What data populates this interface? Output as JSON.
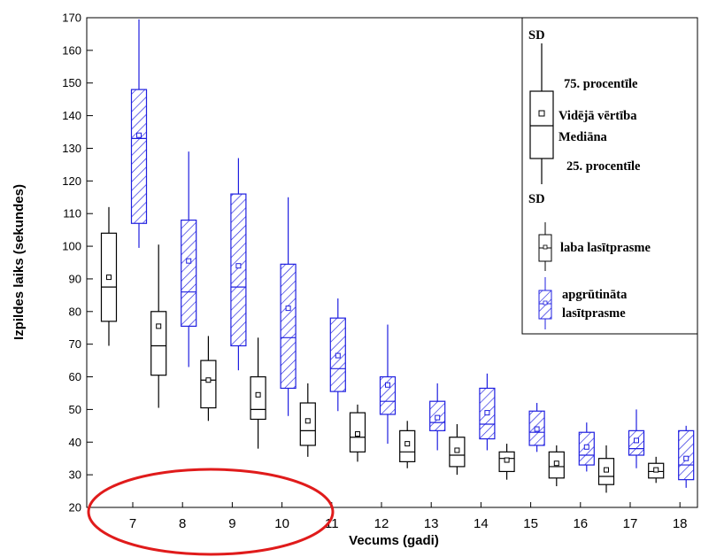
{
  "chart_data": {
    "type": "box",
    "xlabel": "Vecums (gadi)",
    "ylabel": "Izpildes laiks (sekundes)",
    "ylim": [
      20,
      170
    ],
    "yticks": [
      20,
      30,
      40,
      50,
      60,
      70,
      80,
      90,
      100,
      110,
      120,
      130,
      140,
      150,
      160,
      170
    ],
    "categories": [
      "7",
      "8",
      "9",
      "10",
      "11",
      "12",
      "13",
      "14",
      "15",
      "16",
      "17",
      "18"
    ],
    "grid": false,
    "legend_position": "top-right",
    "series": [
      {
        "name": "laba lasītprasme",
        "color": "#000000",
        "pattern": "none",
        "boxes": [
          {
            "low": 69.5,
            "q1": 77,
            "median": 87.5,
            "q3": 104,
            "high": 112,
            "mean": 90.5
          },
          {
            "low": 50.5,
            "q1": 60.5,
            "median": 69.5,
            "q3": 80,
            "high": 100.5,
            "mean": 75.5
          },
          {
            "low": 46.5,
            "q1": 50.5,
            "median": 59,
            "q3": 65,
            "high": 72.5,
            "mean": 59
          },
          {
            "low": 38,
            "q1": 47,
            "median": 50,
            "q3": 60,
            "high": 72,
            "mean": 54.5
          },
          {
            "low": 35.5,
            "q1": 39,
            "median": 43.5,
            "q3": 52,
            "high": 58,
            "mean": 46.5
          },
          {
            "low": 34,
            "q1": 37,
            "median": 41.5,
            "q3": 49,
            "high": 51.5,
            "mean": 42.5
          },
          {
            "low": 32,
            "q1": 34,
            "median": 37,
            "q3": 43.5,
            "high": 46.5,
            "mean": 39.5
          },
          {
            "low": 30,
            "q1": 32.5,
            "median": 36,
            "q3": 41.5,
            "high": 45.5,
            "mean": 37.5
          },
          {
            "low": 28.5,
            "q1": 31,
            "median": 35,
            "q3": 37,
            "high": 39.5,
            "mean": 34.5
          },
          {
            "low": 26.5,
            "q1": 29,
            "median": 32.5,
            "q3": 37,
            "high": 39,
            "mean": 33.5
          },
          {
            "low": 24.5,
            "q1": 27,
            "median": 29.5,
            "q3": 35,
            "high": 39,
            "mean": 31.5
          },
          {
            "low": 27.5,
            "q1": 29,
            "median": 31,
            "q3": 33.5,
            "high": 35.5,
            "mean": 31.5
          }
        ]
      },
      {
        "name": "apgrūtināta lasītprasme",
        "color": "#1f1fe0",
        "pattern": "diagonal-hatch",
        "boxes": [
          {
            "low": 99.5,
            "q1": 107,
            "median": 133,
            "q3": 148,
            "high": 169.5,
            "mean": 134
          },
          {
            "low": 63,
            "q1": 75.5,
            "median": 86,
            "q3": 108,
            "high": 129,
            "mean": 95.5
          },
          {
            "low": 62,
            "q1": 69.5,
            "median": 87.5,
            "q3": 116,
            "high": 127,
            "mean": 94
          },
          {
            "low": 48,
            "q1": 56.5,
            "median": 72,
            "q3": 94.5,
            "high": 115,
            "mean": 81
          },
          {
            "low": 49.5,
            "q1": 55.5,
            "median": 62.5,
            "q3": 78,
            "high": 84,
            "mean": 66.5
          },
          {
            "low": 39.5,
            "q1": 48.5,
            "median": 52.5,
            "q3": 60,
            "high": 76,
            "mean": 57.5
          },
          {
            "low": 37.5,
            "q1": 43.5,
            "median": 46,
            "q3": 52.5,
            "high": 58,
            "mean": 47.5
          },
          {
            "low": 37.5,
            "q1": 41,
            "median": 45.5,
            "q3": 56.5,
            "high": 61,
            "mean": 49
          },
          {
            "low": 37,
            "q1": 39,
            "median": 43,
            "q3": 49.5,
            "high": 52,
            "mean": 44
          },
          {
            "low": 31,
            "q1": 33,
            "median": 36,
            "q3": 43,
            "high": 46,
            "mean": 38.5
          },
          {
            "low": 32,
            "q1": 36,
            "median": 38,
            "q3": 43.5,
            "high": 50,
            "mean": 40.5
          },
          {
            "low": 26,
            "q1": 28.5,
            "median": 33,
            "q3": 43.5,
            "high": 45,
            "mean": 35
          }
        ]
      }
    ]
  },
  "legend": {
    "sd_top": "SD",
    "p75": "75. procentīle",
    "mean": "Vidējā vērtība",
    "median": "Mediāna",
    "p25": "25. procentīle",
    "sd_bottom": "SD",
    "series_good": "laba lasītprasme",
    "series_poor_line1": "apgrūtināta",
    "series_poor_line2": "lasītprasme"
  },
  "annotation": {
    "shape": "ellipse",
    "color": "#e01b1b"
  }
}
